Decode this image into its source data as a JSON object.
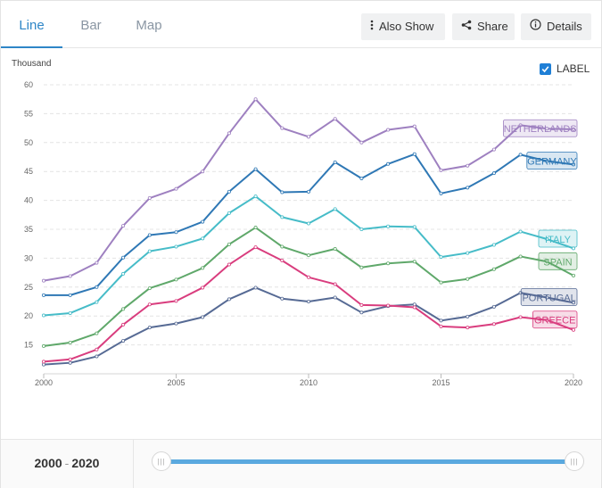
{
  "tabs": [
    {
      "label": "Line",
      "active": true
    },
    {
      "label": "Bar",
      "active": false
    },
    {
      "label": "Map",
      "active": false
    }
  ],
  "toolbar": {
    "also_show": {
      "label": "Also Show",
      "icon": "vertical-dots-icon"
    },
    "share": {
      "label": "Share",
      "icon": "share-icon"
    },
    "details": {
      "label": "Details",
      "icon": "info-icon"
    }
  },
  "label_toggle": {
    "label": "LABEL",
    "checked": true
  },
  "range": {
    "start": "2000",
    "end": "2020",
    "separator": "-"
  },
  "chart_data": {
    "type": "line",
    "unit_label": "Thousand",
    "ylim": [
      10,
      60
    ],
    "yticks": [
      15,
      20,
      25,
      30,
      35,
      40,
      45,
      50,
      55,
      60
    ],
    "xticks": [
      2000,
      2005,
      2010,
      2015,
      2020
    ],
    "grid": true,
    "x": [
      2000,
      2001,
      2002,
      2003,
      2004,
      2005,
      2006,
      2007,
      2008,
      2009,
      2010,
      2011,
      2012,
      2013,
      2014,
      2015,
      2016,
      2017,
      2018,
      2019,
      2020
    ],
    "series": [
      {
        "name": "NETHERLANDS",
        "color": "#9e80c0",
        "values": [
          26.1,
          26.9,
          29.2,
          35.6,
          40.4,
          42.0,
          45.0,
          51.6,
          57.5,
          52.5,
          51.0,
          54.1,
          50.0,
          52.2,
          52.8,
          45.2,
          46.0,
          48.8,
          53.0,
          52.4,
          52.3
        ]
      },
      {
        "name": "GERMANY",
        "color": "#2f78b5",
        "values": [
          23.6,
          23.6,
          25.0,
          30.1,
          34.0,
          34.5,
          36.3,
          41.5,
          45.4,
          41.4,
          41.5,
          46.6,
          43.8,
          46.3,
          48.0,
          41.2,
          42.2,
          44.7,
          47.9,
          46.8,
          46.2
        ]
      },
      {
        "name": "ITALY",
        "color": "#46bcc8",
        "values": [
          20.1,
          20.5,
          22.4,
          27.3,
          31.2,
          32.0,
          33.4,
          37.8,
          40.7,
          37.1,
          36.0,
          38.5,
          35.0,
          35.5,
          35.4,
          30.2,
          30.9,
          32.3,
          34.6,
          33.3,
          31.7
        ]
      },
      {
        "name": "SPAIN",
        "color": "#5fa86a",
        "values": [
          14.8,
          15.4,
          17.0,
          21.2,
          24.8,
          26.3,
          28.3,
          32.4,
          35.3,
          32.0,
          30.5,
          31.6,
          28.4,
          29.1,
          29.4,
          25.8,
          26.4,
          28.1,
          30.3,
          29.4,
          27.0
        ]
      },
      {
        "name": "PORTUGAL",
        "color": "#566a94",
        "values": [
          11.6,
          11.9,
          13.0,
          15.7,
          18.0,
          18.7,
          19.8,
          22.9,
          24.9,
          23.0,
          22.5,
          23.2,
          20.6,
          21.7,
          22.0,
          19.2,
          19.9,
          21.6,
          24.0,
          23.2,
          22.3
        ]
      },
      {
        "name": "GREECE",
        "color": "#d93d7e",
        "values": [
          12.1,
          12.5,
          14.2,
          18.5,
          22.0,
          22.6,
          24.9,
          28.9,
          31.9,
          29.6,
          26.7,
          25.5,
          21.9,
          21.8,
          21.5,
          18.2,
          18.0,
          18.6,
          19.8,
          19.3,
          17.6
        ]
      }
    ]
  }
}
